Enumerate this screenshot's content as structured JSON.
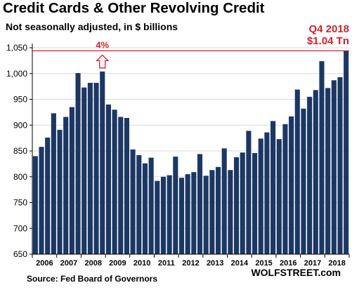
{
  "title": "Credit Cards & Other Revolving Credit",
  "subtitle": "Not seasonally adjusted, in $ billions",
  "annotation_period": "Q4 2018",
  "annotation_value": "$1.04 Tn",
  "annotation_pct": "4%",
  "source": "Source: Fed Board of Governors",
  "brand": "WOLFSTREET.com",
  "colors": {
    "bar": "#1c3763",
    "reference": "#d6202a",
    "grid": "#d9d9d9"
  },
  "chart_data": {
    "type": "bar",
    "unit": "$ billions",
    "ylim": [
      650,
      1050
    ],
    "yticks": [
      650,
      700,
      750,
      800,
      850,
      900,
      950,
      1000,
      1050
    ],
    "ytick_labels": [
      "650",
      "700",
      "750",
      "800",
      "850",
      "900",
      "950",
      "1,000",
      "1,050"
    ],
    "xtick_labels": [
      "2006",
      "2007",
      "2008",
      "2009",
      "2010",
      "2011",
      "2012",
      "2013",
      "2014",
      "2015",
      "2016",
      "2017",
      "2018"
    ],
    "bars_per_year": 4,
    "grid": true,
    "reference_line": 1044,
    "values": [
      840,
      858,
      876,
      923,
      891,
      916,
      935,
      1001,
      973,
      982,
      982,
      1004,
      940,
      930,
      916,
      914,
      853,
      842,
      826,
      837,
      792,
      800,
      803,
      839,
      798,
      805,
      809,
      844,
      802,
      813,
      819,
      855,
      813,
      838,
      847,
      889,
      846,
      874,
      886,
      908,
      873,
      902,
      917,
      969,
      932,
      955,
      968,
      1024,
      972,
      987,
      993,
      1044
    ]
  }
}
